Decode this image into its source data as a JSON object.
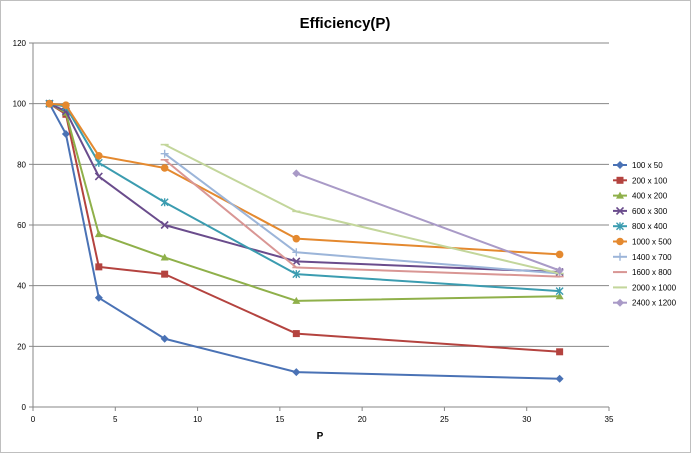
{
  "chart_data": {
    "type": "line",
    "title": "Efficiency(P)",
    "xlabel": "P",
    "ylabel": "",
    "xlim": [
      0,
      35
    ],
    "ylim": [
      0,
      120
    ],
    "xticks": [
      "0",
      "5",
      "10",
      "15",
      "20",
      "25",
      "30",
      "35"
    ],
    "yticks": [
      "0",
      "20",
      "40",
      "60",
      "80",
      "100",
      "120"
    ],
    "grid": "horizontal",
    "legend_position": "right",
    "series": [
      {
        "name": "100 x 50",
        "color": "#4a72b5",
        "marker": "diamond",
        "x": [
          1,
          2,
          4,
          8,
          16,
          32
        ],
        "y": [
          100,
          90,
          36,
          22.5,
          11.5,
          9.3
        ]
      },
      {
        "name": "200 x 100",
        "color": "#b4433f",
        "marker": "square",
        "x": [
          1,
          2,
          4,
          8,
          16,
          32
        ],
        "y": [
          100,
          96.5,
          46.2,
          43.8,
          24.2,
          18.2
        ]
      },
      {
        "name": "400 x 200",
        "color": "#8fb04a",
        "marker": "triangle",
        "x": [
          1,
          2,
          4,
          8,
          16,
          32
        ],
        "y": [
          100,
          97,
          57,
          49.3,
          35,
          36.5
        ]
      },
      {
        "name": "600 x 300",
        "color": "#6a4c8c",
        "marker": "x",
        "x": [
          1,
          2,
          4,
          8,
          16,
          32
        ],
        "y": [
          100,
          97.5,
          76,
          60,
          48,
          44.5
        ]
      },
      {
        "name": "800 x 400",
        "color": "#3b9cb0",
        "marker": "star",
        "x": [
          1,
          2,
          4,
          8,
          16,
          32
        ],
        "y": [
          100,
          99,
          80.5,
          67.5,
          43.8,
          38.2
        ]
      },
      {
        "name": "1000 x 500",
        "color": "#e4892f",
        "marker": "circle",
        "x": [
          1,
          2,
          4,
          8,
          16,
          32
        ],
        "y": [
          100,
          99.5,
          82.8,
          78.8,
          55.5,
          50.3
        ]
      },
      {
        "name": "1400 x 700",
        "color": "#9cb5d9",
        "marker": "plus",
        "x": [
          8,
          16,
          32
        ],
        "y": [
          83.5,
          51,
          44
        ]
      },
      {
        "name": "1600 x 800",
        "color": "#d99694",
        "marker": "dash",
        "x": [
          8,
          16,
          32
        ],
        "y": [
          81.5,
          46,
          43
        ]
      },
      {
        "name": "2000 x 1000",
        "color": "#c3d69b",
        "marker": "dash",
        "x": [
          8,
          16,
          32
        ],
        "y": [
          86.5,
          64.5,
          44
        ]
      },
      {
        "name": "2400 x 1200",
        "color": "#a99ac7",
        "marker": "diamond",
        "x": [
          16,
          32
        ],
        "y": [
          77,
          45
        ]
      }
    ]
  }
}
